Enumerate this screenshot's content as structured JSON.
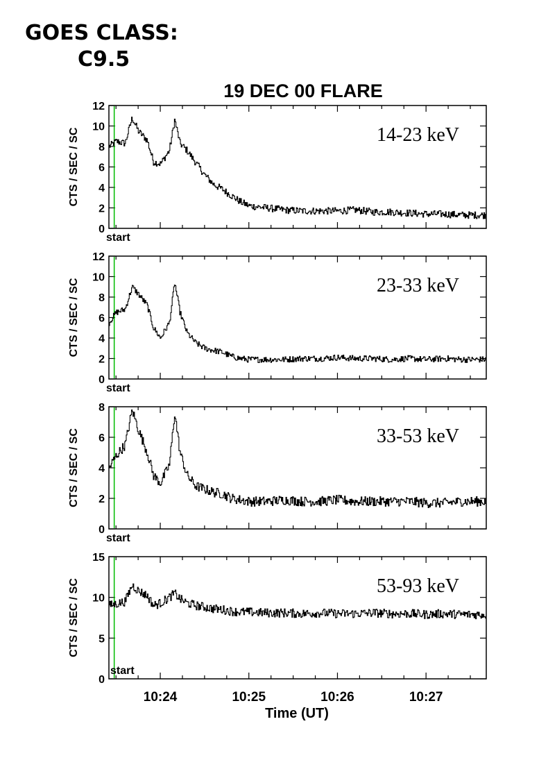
{
  "goes_class_label": "GOES CLASS:",
  "goes_class_value": "C9.5",
  "chart_data": {
    "type": "line",
    "title": "19 DEC 00 FLARE",
    "xlabel": "Time (UT)",
    "ylabel": "CTS / SEC / SC",
    "x_tick_labels": [
      "10:24",
      "10:25",
      "10:26",
      "10:27"
    ],
    "x_ticks_minutes": [
      24,
      25,
      26,
      27
    ],
    "xlim_minutes": [
      23.42,
      27.68
    ],
    "x_unit_note": "minutes after 10:00 UT",
    "start_marker_minutes": 23.48,
    "start_label": "start",
    "start_color": "#00bb00",
    "line_color": "#000000",
    "panels": [
      {
        "name": "14-23 keV",
        "ylim": [
          0,
          12
        ],
        "yticks": [
          0,
          2,
          4,
          6,
          8,
          10,
          12
        ],
        "x": [
          23.42,
          23.5,
          23.6,
          23.68,
          23.75,
          23.85,
          23.92,
          24.0,
          24.1,
          24.16,
          24.22,
          24.3,
          24.4,
          24.5,
          24.6,
          24.7,
          24.8,
          24.9,
          25.0,
          25.2,
          25.4,
          25.6,
          25.8,
          26.0,
          26.2,
          26.4,
          26.6,
          26.8,
          27.0,
          27.2,
          27.4,
          27.6,
          27.68
        ],
        "y": [
          8.0,
          8.5,
          8.3,
          10.8,
          9.5,
          8.6,
          6.5,
          6.3,
          7.6,
          10.6,
          8.3,
          7.6,
          6.4,
          5.2,
          4.3,
          3.8,
          3.2,
          2.6,
          2.2,
          2.0,
          1.8,
          1.7,
          1.7,
          1.7,
          1.8,
          1.6,
          1.6,
          1.5,
          1.4,
          1.4,
          1.3,
          1.3,
          1.3
        ]
      },
      {
        "name": "23-33 keV",
        "ylim": [
          0,
          12
        ],
        "yticks": [
          0,
          2,
          4,
          6,
          8,
          10,
          12
        ],
        "x": [
          23.42,
          23.5,
          23.6,
          23.68,
          23.75,
          23.85,
          23.92,
          24.0,
          24.1,
          24.16,
          24.22,
          24.3,
          24.4,
          24.5,
          24.6,
          24.7,
          24.8,
          24.9,
          25.0,
          25.2,
          25.4,
          25.6,
          25.8,
          26.0,
          26.2,
          26.4,
          26.6,
          26.8,
          27.0,
          27.2,
          27.4,
          27.6,
          27.68
        ],
        "y": [
          5.5,
          6.5,
          6.8,
          9.0,
          8.3,
          7.2,
          5.0,
          4.0,
          5.5,
          9.4,
          6.5,
          4.5,
          3.5,
          3.0,
          2.8,
          2.6,
          2.2,
          2.0,
          1.9,
          1.9,
          1.9,
          2.0,
          2.0,
          2.1,
          2.0,
          2.0,
          1.9,
          2.0,
          1.9,
          2.0,
          1.9,
          1.9,
          1.9
        ]
      },
      {
        "name": "33-53 keV",
        "ylim": [
          0,
          8
        ],
        "yticks": [
          0,
          2,
          4,
          6,
          8
        ],
        "x": [
          23.42,
          23.5,
          23.6,
          23.68,
          23.75,
          23.85,
          23.92,
          24.0,
          24.1,
          24.16,
          24.22,
          24.3,
          24.4,
          24.5,
          24.6,
          24.7,
          24.8,
          24.9,
          25.0,
          25.2,
          25.4,
          25.6,
          25.8,
          26.0,
          26.2,
          26.4,
          26.6,
          26.8,
          27.0,
          27.2,
          27.4,
          27.6,
          27.68
        ],
        "y": [
          4.0,
          4.8,
          5.5,
          7.8,
          6.5,
          5.0,
          3.5,
          3.0,
          4.2,
          7.6,
          5.0,
          3.5,
          2.8,
          2.6,
          2.4,
          2.3,
          2.0,
          1.9,
          1.8,
          1.8,
          1.9,
          1.8,
          1.8,
          1.9,
          1.8,
          1.8,
          1.8,
          1.8,
          1.7,
          1.7,
          1.8,
          1.8,
          1.8
        ]
      },
      {
        "name": "53-93 keV",
        "ylim": [
          0,
          15
        ],
        "yticks": [
          0,
          5,
          10,
          15
        ],
        "x": [
          23.42,
          23.5,
          23.6,
          23.68,
          23.75,
          23.85,
          23.92,
          24.0,
          24.1,
          24.16,
          24.22,
          24.3,
          24.4,
          24.5,
          24.6,
          24.7,
          24.8,
          24.9,
          25.0,
          25.2,
          25.4,
          25.6,
          25.8,
          26.0,
          26.2,
          26.4,
          26.6,
          26.8,
          27.0,
          27.2,
          27.4,
          27.6,
          27.68
        ],
        "y": [
          9.0,
          9.2,
          9.5,
          11.5,
          10.8,
          10.2,
          9.0,
          9.3,
          10.0,
          10.5,
          9.8,
          9.3,
          9.0,
          8.8,
          8.6,
          8.5,
          8.3,
          8.2,
          8.2,
          8.1,
          8.1,
          8.0,
          8.1,
          8.0,
          8.0,
          8.1,
          8.0,
          8.0,
          7.9,
          8.0,
          7.9,
          7.9,
          7.9
        ]
      }
    ]
  }
}
